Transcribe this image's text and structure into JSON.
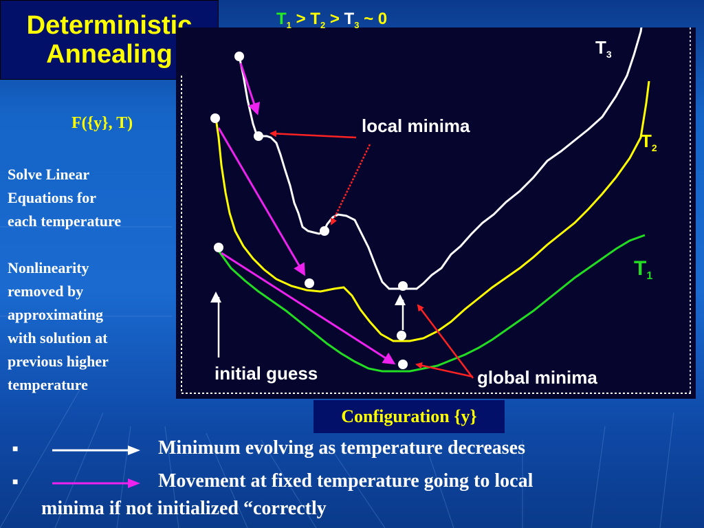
{
  "title": {
    "line1": "Deterministic",
    "line2": "Annealing"
  },
  "axis_label": "F({y}, T)",
  "side_notes": [
    "Solve Linear",
    "Equations for",
    "each temperature",
    "",
    "Nonlinearity",
    "removed by",
    "approximating",
    "with solution at",
    "previous higher",
    "temperature"
  ],
  "plot": {
    "header": {
      "t1": "T",
      "s1": "1",
      "gt1": ">",
      "t2": "T",
      "s2": "2",
      "gt2": ">",
      "t3": "T",
      "s3": "3",
      "tail": "~ 0"
    },
    "curve_labels": {
      "t3": {
        "main": "T",
        "sub": "3"
      },
      "t2": {
        "main": "T",
        "sub": "2"
      },
      "t1": {
        "main": "T",
        "sub": "1"
      }
    },
    "annotations": {
      "local_minima": "local minima",
      "global_minima": "global minima",
      "initial_guess": "initial guess"
    },
    "colors": {
      "t3": "#ffffff",
      "t2": "#ffff00",
      "t1": "#22dd22",
      "movement": "#ee22ee",
      "pointer": "#ff2222"
    }
  },
  "x_axis_label": "Configuration {y}",
  "bullets": [
    {
      "symbol": "■",
      "arrow_color": "#ffffff",
      "text": "Minimum evolving as temperature decreases"
    },
    {
      "symbol": "■",
      "arrow_color": "#ee22ee",
      "text": "Movement at fixed temperature going to local",
      "text2": "minima if not initialized “correctly"
    }
  ]
}
